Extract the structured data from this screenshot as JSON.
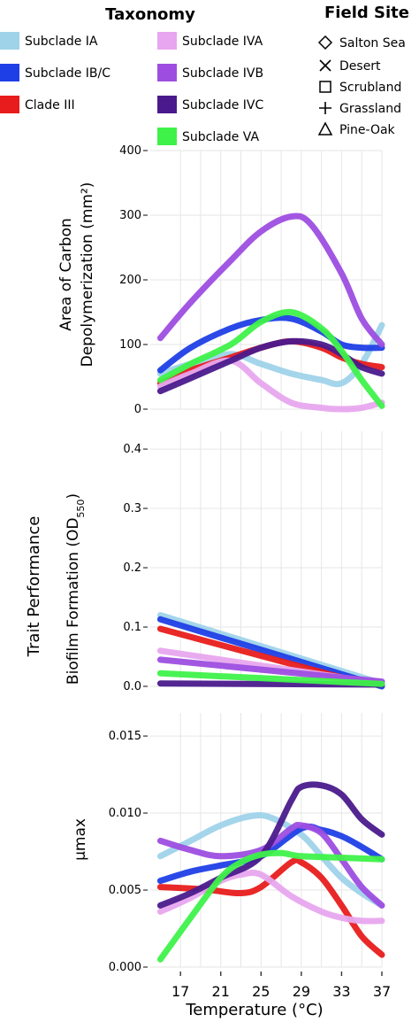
{
  "legend": {
    "taxonomy_title": "Taxonomy",
    "site_title": "Field Site",
    "taxa": [
      {
        "name": "Subclade IA",
        "color": "#9fd3ea"
      },
      {
        "name": "Subclade IB/C",
        "color": "#1f3fe6"
      },
      {
        "name": "Clade III",
        "color": "#e81c1c"
      },
      {
        "name": "Subclade IVA",
        "color": "#e8a6ee"
      },
      {
        "name": "Subclade IVB",
        "color": "#9d4ee0"
      },
      {
        "name": "Subclade IVC",
        "color": "#4a1a8c"
      },
      {
        "name": "Subclade VA",
        "color": "#3ef24a"
      }
    ],
    "sites": [
      {
        "name": "Salton Sea",
        "icon": "diamond-icon"
      },
      {
        "name": "Desert",
        "icon": "cross-x-icon"
      },
      {
        "name": "Scrubland",
        "icon": "square-icon"
      },
      {
        "name": "Grassland",
        "icon": "plus-icon"
      },
      {
        "name": "Pine-Oak",
        "icon": "triangle-icon"
      }
    ]
  },
  "shared_ylabel": "Trait Performance",
  "chart_data": [
    {
      "type": "line",
      "panel": "carbon",
      "ylabel": "Area of Carbon Depolymerization (mm²)",
      "ylabel_line1": "Area of Carbon",
      "ylabel_line2": "Depolymerization (mm²)",
      "ylim": [
        0,
        400
      ],
      "yticks": [
        0,
        100,
        200,
        300,
        400
      ],
      "ytick_labels": [
        "0",
        "100",
        "200",
        "300",
        "400"
      ],
      "xlim": [
        14,
        37
      ],
      "series": [
        {
          "name": "Subclade IA",
          "color": "#9fd3ea",
          "x": [
            15,
            18,
            22,
            25,
            28,
            31,
            33,
            35,
            37
          ],
          "y": [
            55,
            70,
            85,
            70,
            55,
            45,
            40,
            70,
            130
          ]
        },
        {
          "name": "Subclade IB/C",
          "color": "#1f3fe6",
          "x": [
            15,
            18,
            22,
            25,
            28,
            31,
            33,
            35,
            37
          ],
          "y": [
            60,
            95,
            125,
            138,
            140,
            120,
            100,
            95,
            95
          ]
        },
        {
          "name": "Clade III",
          "color": "#e81c1c",
          "x": [
            15,
            18,
            22,
            25,
            28,
            31,
            33,
            35,
            37
          ],
          "y": [
            40,
            60,
            80,
            95,
            105,
            95,
            80,
            70,
            65
          ]
        },
        {
          "name": "Subclade IVA",
          "color": "#e8a6ee",
          "x": [
            15,
            18,
            22,
            25,
            28,
            31,
            33,
            35,
            37
          ],
          "y": [
            35,
            55,
            75,
            40,
            10,
            2,
            0,
            2,
            10
          ]
        },
        {
          "name": "Subclade IVB",
          "color": "#9d4ee0",
          "x": [
            15,
            18,
            22,
            25,
            28,
            30,
            33,
            35,
            37
          ],
          "y": [
            110,
            165,
            230,
            275,
            298,
            285,
            210,
            140,
            100
          ]
        },
        {
          "name": "Subclade IVC",
          "color": "#4a1a8c",
          "x": [
            15,
            18,
            22,
            25,
            28,
            31,
            33,
            35,
            37
          ],
          "y": [
            28,
            48,
            75,
            95,
            105,
            100,
            85,
            65,
            55
          ]
        },
        {
          "name": "Subclade VA",
          "color": "#3ef24a",
          "x": [
            15,
            18,
            22,
            25,
            28,
            31,
            33,
            35,
            37
          ],
          "y": [
            45,
            70,
            100,
            135,
            150,
            125,
            90,
            45,
            5
          ]
        }
      ]
    },
    {
      "type": "line",
      "panel": "biofilm",
      "ylabel": "Biofilm Formation (OD550)",
      "ylabel_main": "Biofilm Formation (OD",
      "ylabel_sub": "550",
      "ylabel_end": ")",
      "ylim": [
        0,
        0.43
      ],
      "yticks": [
        0,
        0.1,
        0.2,
        0.3,
        0.4
      ],
      "ytick_labels": [
        "0.0",
        "0.1",
        "0.2",
        "0.3",
        "0.4"
      ],
      "xlim": [
        14,
        37
      ],
      "series": [
        {
          "name": "Subclade IA",
          "color": "#9fd3ea",
          "x": [
            15,
            37
          ],
          "y": [
            0.12,
            0.005
          ]
        },
        {
          "name": "Subclade IB/C",
          "color": "#1f3fe6",
          "x": [
            15,
            37
          ],
          "y": [
            0.113,
            0.0
          ]
        },
        {
          "name": "Clade III",
          "color": "#e81c1c",
          "x": [
            15,
            33
          ],
          "y": [
            0.097,
            0.015
          ]
        },
        {
          "name": "Subclade IVA",
          "color": "#e8a6ee",
          "x": [
            15,
            37
          ],
          "y": [
            0.06,
            0.005
          ]
        },
        {
          "name": "Subclade IVB",
          "color": "#9d4ee0",
          "x": [
            15,
            37
          ],
          "y": [
            0.045,
            0.008
          ]
        },
        {
          "name": "Subclade IVC",
          "color": "#4a1a8c",
          "x": [
            15,
            37
          ],
          "y": [
            0.005,
            0.003
          ]
        },
        {
          "name": "Subclade VA",
          "color": "#3ef24a",
          "x": [
            15,
            37
          ],
          "y": [
            0.022,
            0.004
          ]
        }
      ]
    },
    {
      "type": "line",
      "panel": "umax",
      "ylabel": "μmax",
      "ylim": [
        0,
        0.0165
      ],
      "yticks": [
        0,
        0.005,
        0.01,
        0.015
      ],
      "ytick_labels": [
        "0.000",
        "0.005",
        "0.010",
        "0.015"
      ],
      "xlim": [
        14,
        37
      ],
      "xlabel": "Temperature (°C)",
      "xticks": [
        17,
        21,
        25,
        29,
        33,
        37
      ],
      "xtick_labels": [
        "17",
        "21",
        "25",
        "29",
        "33",
        "37"
      ],
      "series": [
        {
          "name": "Subclade IA",
          "color": "#9fd3ea",
          "x": [
            15,
            18,
            21,
            24,
            26,
            29,
            31,
            33,
            35,
            37
          ],
          "y": [
            0.0072,
            0.0082,
            0.0092,
            0.0098,
            0.0097,
            0.0086,
            0.0072,
            0.0058,
            0.0048,
            0.004
          ]
        },
        {
          "name": "Subclade IB/C",
          "color": "#1f3fe6",
          "x": [
            15,
            18,
            21,
            25,
            29,
            31,
            33,
            35,
            37
          ],
          "y": [
            0.0056,
            0.0062,
            0.0066,
            0.0072,
            0.009,
            0.0089,
            0.0085,
            0.0078,
            0.007
          ]
        },
        {
          "name": "Clade III",
          "color": "#e81c1c",
          "x": [
            15,
            18,
            20,
            23,
            25,
            28,
            29,
            31,
            33,
            35,
            37
          ],
          "y": [
            0.0052,
            0.0051,
            0.005,
            0.0048,
            0.0052,
            0.0068,
            0.0068,
            0.0058,
            0.004,
            0.002,
            0.0008
          ]
        },
        {
          "name": "Subclade IVA",
          "color": "#e8a6ee",
          "x": [
            15,
            18,
            21,
            23,
            25,
            28,
            31,
            33,
            35,
            37
          ],
          "y": [
            0.0036,
            0.0045,
            0.0056,
            0.006,
            0.006,
            0.0046,
            0.0036,
            0.0032,
            0.003,
            0.003
          ]
        },
        {
          "name": "Subclade IVB",
          "color": "#9d4ee0",
          "x": [
            15,
            18,
            21,
            25,
            28,
            29,
            31,
            33,
            35,
            37
          ],
          "y": [
            0.0082,
            0.0076,
            0.0072,
            0.0076,
            0.009,
            0.0092,
            0.0087,
            0.007,
            0.0052,
            0.004
          ]
        },
        {
          "name": "Subclade IVC",
          "color": "#4a1a8c",
          "x": [
            15,
            18,
            21,
            25,
            28,
            29,
            31,
            33,
            35,
            37
          ],
          "y": [
            0.004,
            0.0048,
            0.0058,
            0.0072,
            0.0108,
            0.0117,
            0.0118,
            0.0112,
            0.0096,
            0.0086
          ]
        },
        {
          "name": "Subclade VA",
          "color": "#3ef24a",
          "x": [
            15,
            18,
            21,
            23,
            25,
            27,
            29,
            33,
            37
          ],
          "y": [
            0.0005,
            0.0032,
            0.0058,
            0.0068,
            0.0073,
            0.0074,
            0.0072,
            0.0071,
            0.007
          ]
        }
      ]
    }
  ]
}
